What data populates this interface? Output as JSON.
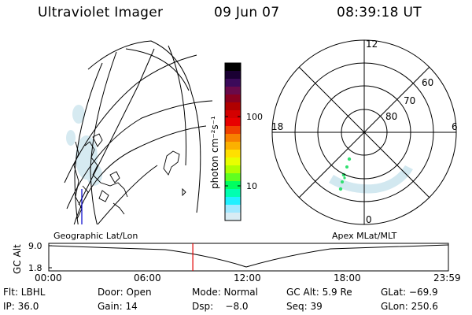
{
  "header": {
    "title": "Ultraviolet Imager",
    "date": "09 Jun 07",
    "time": "08:39:18 UT"
  },
  "colorbar": {
    "unit_label": "photon cm⁻²s⁻¹",
    "tick_labels": [
      "100",
      "10"
    ],
    "colors": [
      "#000000",
      "#1a0033",
      "#3b0a5a",
      "#6a0a4a",
      "#8a0020",
      "#b00000",
      "#d40000",
      "#e80000",
      "#f04000",
      "#f78000",
      "#fbb000",
      "#ffe000",
      "#e8ff00",
      "#b0ff00",
      "#60ff20",
      "#00ff60",
      "#00ffb0",
      "#20f0ff",
      "#a0e8ff",
      "#d8ecf4"
    ]
  },
  "polar_plot": {
    "lat_labels": [
      "60",
      "70",
      "80"
    ],
    "mlt_labels": [
      "12",
      "18",
      "6",
      "0"
    ]
  },
  "timeline": {
    "left_label": "Geographic Lat/Lon",
    "right_label": "Apex MLat/MLT",
    "y_axis_label": "GC Alt",
    "y_ticks": [
      "9.0",
      "1.8"
    ],
    "x_ticks": [
      "00:00",
      "06:00",
      "12:00",
      "18:00",
      "23:59"
    ],
    "current_time_fraction": 0.3605
  },
  "info": {
    "row1": {
      "flt": "Flt: LBHL",
      "door": "Door: Open",
      "mode": "Mode: Normal",
      "gcalt": "GC Alt: 5.9 Re",
      "glat": "GLat: −69.9"
    },
    "row2": {
      "ip": "IP: 36.0",
      "gain": "Gain: 14",
      "dsp": "Dsp:    −8.0",
      "seq": "Seq: 39",
      "glon": "GLon: 250.6"
    }
  }
}
